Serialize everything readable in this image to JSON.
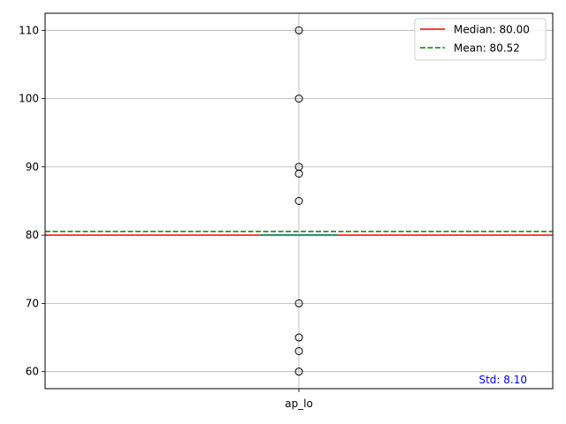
{
  "chart_data": {
    "type": "box",
    "title": "",
    "xlabel": "",
    "ylabel": "",
    "categories": [
      "ap_lo"
    ],
    "ylim": [
      57.5,
      112.5
    ],
    "yticks": [
      60,
      70,
      80,
      90,
      100,
      110
    ],
    "grid": true,
    "box": {
      "category": "ap_lo",
      "q1": 80,
      "median": 80,
      "q3": 80,
      "whisker_low": 80,
      "whisker_high": 80,
      "outliers": [
        110,
        100,
        90,
        89,
        85,
        70,
        65,
        63,
        60
      ]
    },
    "reference_lines": [
      {
        "label": "Median: 80.00",
        "value": 80.0,
        "color": "#ff0000",
        "style": "solid"
      },
      {
        "label": "Mean: 80.52",
        "value": 80.52,
        "color": "#008000",
        "style": "dashed"
      }
    ],
    "legend_position": "top-right",
    "annotation": {
      "text": "Std: 8.10",
      "color": "#0000ff",
      "position": "bottom-right"
    },
    "colors": {
      "grid": "#b0b0b0",
      "box": "#1f77b4",
      "median_in_box": "#2ca02c",
      "outlier_edge": "#000000"
    }
  }
}
